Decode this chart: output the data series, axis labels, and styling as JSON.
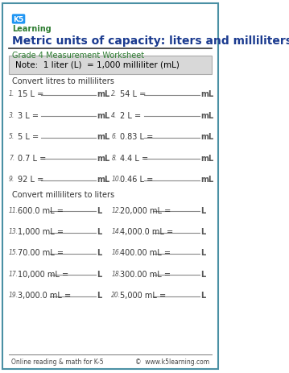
{
  "title": "Metric units of capacity: liters and milliliters",
  "subtitle": "Grade 4 Measurement Worksheet",
  "note": "Note:  1 liter (L)  = 1,000 milliliter (mL)",
  "section1_header": "Convert litres to milliliters",
  "section2_header": "Convert milliliters to liters",
  "col1_problems": [
    {
      "num": "1.",
      "expr": "15 L =",
      "unit": "mL"
    },
    {
      "num": "3.",
      "expr": "3 L =",
      "unit": "mL"
    },
    {
      "num": "5.",
      "expr": "5 L =",
      "unit": "mL"
    },
    {
      "num": "7.",
      "expr": "0.7 L =",
      "unit": "mL"
    },
    {
      "num": "9.",
      "expr": "92 L =",
      "unit": "mL"
    }
  ],
  "col2_problems": [
    {
      "num": "2.",
      "expr": "54 L =",
      "unit": "mL"
    },
    {
      "num": "4.",
      "expr": "2 L =",
      "unit": "mL"
    },
    {
      "num": "6.",
      "expr": "0.83 L =",
      "unit": "mL"
    },
    {
      "num": "8.",
      "expr": "4.4 L =",
      "unit": "mL"
    },
    {
      "num": "10.",
      "expr": "0.46 L =",
      "unit": "mL"
    }
  ],
  "col3_problems": [
    {
      "num": "11.",
      "expr": "600.0 mL =",
      "unit": "L"
    },
    {
      "num": "13.",
      "expr": "1,000 mL =",
      "unit": "L"
    },
    {
      "num": "15.",
      "expr": "70.00 mL =",
      "unit": "L"
    },
    {
      "num": "17.",
      "expr": "10,000 mL =",
      "unit": "L"
    },
    {
      "num": "19.",
      "expr": "3,000.0 mL =",
      "unit": "L"
    }
  ],
  "col4_problems": [
    {
      "num": "12.",
      "expr": "20,000 mL =",
      "unit": "L"
    },
    {
      "num": "14.",
      "expr": "4,000.0 mL =",
      "unit": "L"
    },
    {
      "num": "16.",
      "expr": "400.00 mL =",
      "unit": "L"
    },
    {
      "num": "18.",
      "expr": "300.00 mL =",
      "unit": "L"
    },
    {
      "num": "20.",
      "expr": "5,000 mL =",
      "unit": "L"
    }
  ],
  "footer_left": "Online reading & math for K-5",
  "footer_right": "©  www.k5learning.com",
  "border_color": "#4a90a4",
  "title_color": "#1a3a8f",
  "subtitle_color": "#2e7d32",
  "note_bg": "#d8d8d8",
  "note_text_color": "#000000",
  "section_header_color": "#333333",
  "problem_color": "#333333",
  "unit_color": "#555555",
  "line_color": "#888888",
  "background_color": "#ffffff"
}
